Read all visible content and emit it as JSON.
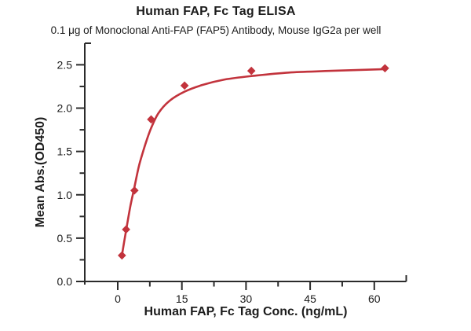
{
  "page": {
    "background": "#ffffff",
    "text_color": "#1c1c1c",
    "axis_color": "#2b2b2b"
  },
  "chart_data": {
    "type": "scatter",
    "title": "Human FAP, Fc Tag ELISA",
    "subtitle": "0.1 μg of Monoclonal Anti-FAP (FAP5) Antibody, Mouse IgG2a per well",
    "xlabel": "Human FAP, Fc Tag Conc. (ng/mL)",
    "ylabel": "Mean Abs.(OD450)",
    "x_ticks": [
      0,
      15,
      30,
      45,
      60
    ],
    "x_minor_ticks": [
      7.5,
      22.5,
      37.5,
      52.5
    ],
    "y_ticks": [
      0.0,
      0.5,
      1.0,
      1.5,
      2.0,
      2.5
    ],
    "y_minor_ticks": [
      0.25,
      0.75,
      1.25,
      1.75,
      2.25
    ],
    "xlim": [
      -7.7,
      67.5
    ],
    "ylim": [
      0,
      2.75
    ],
    "grid": false,
    "legend": "none",
    "accent_color": "#c2333c",
    "series": [
      {
        "marker": "diamond",
        "color": "#c2333c",
        "x": [
          0.98,
          1.95,
          3.91,
          7.81,
          15.63,
          31.25,
          62.5
        ],
        "y": [
          0.3,
          0.6,
          1.05,
          1.87,
          2.26,
          2.43,
          2.46
        ]
      }
    ],
    "fit_curve": {
      "color": "#c2333c",
      "x": [
        0.98,
        1.5,
        2.2,
        3.0,
        3.91,
        5.0,
        6.5,
        7.81,
        9.5,
        12,
        15.63,
        20,
        25,
        31.25,
        40,
        50,
        62.5
      ],
      "y": [
        0.3,
        0.46,
        0.66,
        0.88,
        1.09,
        1.34,
        1.59,
        1.77,
        1.94,
        2.08,
        2.19,
        2.27,
        2.33,
        2.37,
        2.41,
        2.43,
        2.45
      ]
    }
  }
}
